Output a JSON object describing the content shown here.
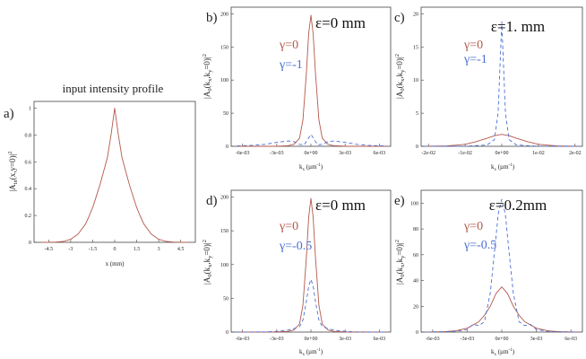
{
  "colors": {
    "red": "#b4584a",
    "blue": "#4a6fd4",
    "axis": "#444444",
    "text": "#222222"
  },
  "chart_data": [
    {
      "id": "a",
      "type": "line",
      "panel_label": "a)",
      "title": "input intensity profile",
      "ylabel": "|A_in(x,y=0)|^2",
      "ylabel_main": "|A",
      "ylabel_sub": "in",
      "ylabel_rest": "(x,y=0)|",
      "ylabel_sup": "2",
      "xlabel": "x (mm)",
      "xlim": [
        -5.5,
        5.5
      ],
      "ylim": [
        0,
        1.05
      ],
      "xticks": [
        -4.5,
        -3,
        -1.5,
        0,
        1.5,
        3,
        4.5
      ],
      "xtick_labels": [
        "-4.5",
        "-3",
        "-1.5",
        "0",
        "1.5",
        "3",
        "4.5"
      ],
      "yticks": [
        0,
        0.2,
        0.4,
        0.6,
        0.8,
        1
      ],
      "ytick_labels": [
        "0",
        "0.2",
        "0.4",
        "0.6",
        "0.8",
        "1"
      ],
      "annotation": "",
      "legend": [],
      "series": [
        {
          "name": "input",
          "color_key": "red",
          "dash": "",
          "x": [
            -5,
            -4.5,
            -4,
            -3.5,
            -3,
            -2.5,
            -2,
            -1.75,
            -1.5,
            -1.25,
            -1,
            -0.75,
            -0.5,
            -0.25,
            0,
            0.25,
            0.5,
            0.75,
            1,
            1.25,
            1.5,
            1.75,
            2,
            2.5,
            3,
            3.5,
            4,
            4.5,
            5
          ],
          "y": [
            0.0001,
            0.0004,
            0.0018,
            0.007,
            0.0228,
            0.061,
            0.135,
            0.194,
            0.26,
            0.343,
            0.43,
            0.53,
            0.63,
            0.8,
            1,
            0.8,
            0.63,
            0.53,
            0.43,
            0.343,
            0.26,
            0.194,
            0.135,
            0.061,
            0.0228,
            0.007,
            0.0018,
            0.0004,
            0.0001
          ]
        }
      ]
    },
    {
      "id": "b",
      "type": "line",
      "panel_label": "b)",
      "title": "",
      "ylabel": "|A_0(k_x,k_y=0)|^2",
      "ylabel_main": "|A",
      "ylabel_sub": "0",
      "ylabel_rest": "(k",
      "ylabel_sub2": "x",
      "ylabel_rest2": ",k",
      "ylabel_sub3": "y",
      "ylabel_rest3": "=0)|",
      "ylabel_sup": "2",
      "xlabel": "k_x (µm^-1)",
      "xlim": [
        -0.007,
        0.007
      ],
      "ylim": [
        0,
        210
      ],
      "xticks": [
        -0.006,
        -0.003,
        0,
        0.003,
        0.006
      ],
      "xtick_labels": [
        "-6e-03",
        "-3e-03",
        "0e+00",
        "3e-03",
        "6e-03"
      ],
      "yticks": [
        0,
        50,
        100,
        150,
        200
      ],
      "ytick_labels": [
        "0",
        "50",
        "100",
        "150",
        "200"
      ],
      "annotation": "ε=0 mm",
      "legend": [
        {
          "label": "γ=0",
          "color_key": "red"
        },
        {
          "label": "γ=-1",
          "color_key": "blue"
        }
      ],
      "series": [
        {
          "name": "γ=0",
          "color_key": "red",
          "dash": "",
          "x": [
            -0.0065,
            -0.005,
            -0.004,
            -0.003,
            -0.002,
            -0.0015,
            -0.001,
            -0.0007,
            -0.0004,
            -0.0002,
            0,
            0.0002,
            0.0004,
            0.0007,
            0.001,
            0.0015,
            0.002,
            0.003,
            0.004,
            0.005,
            0.0065
          ],
          "y": [
            0,
            0,
            0,
            0.2,
            1,
            3,
            12,
            40,
            110,
            170,
            198,
            170,
            110,
            40,
            12,
            3,
            1,
            0.2,
            0,
            0,
            0
          ]
        },
        {
          "name": "γ=-1",
          "color_key": "blue",
          "dash": "4,3",
          "x": [
            -0.0065,
            -0.005,
            -0.004,
            -0.003,
            -0.002,
            -0.0015,
            -0.001,
            -0.0006,
            -0.0003,
            0,
            0.0003,
            0.0006,
            0.001,
            0.0015,
            0.002,
            0.003,
            0.004,
            0.005,
            0.0065
          ],
          "y": [
            0.5,
            1.5,
            3,
            6,
            8,
            7,
            3,
            2,
            10,
            18,
            10,
            2,
            3,
            7,
            8,
            6,
            3,
            1.5,
            0.5
          ]
        }
      ]
    },
    {
      "id": "c",
      "type": "line",
      "panel_label": "c)",
      "title": "",
      "ylabel": "|A_0(k_x,k_y=0)|^2",
      "ylabel_main": "|A",
      "ylabel_sub": "0",
      "ylabel_rest": "(k",
      "ylabel_sub2": "x",
      "ylabel_rest2": ",k",
      "ylabel_sub3": "y",
      "ylabel_rest3": "=0)|",
      "ylabel_sup": "2",
      "xlabel": "k_x (µm^-1)",
      "xlim": [
        -0.022,
        0.022
      ],
      "ylim": [
        0,
        21
      ],
      "xticks": [
        -0.02,
        -0.01,
        0,
        0.01,
        0.02
      ],
      "xtick_labels": [
        "-2e-02",
        "-1e-02",
        "0e+00",
        "1e-02",
        "2e-02"
      ],
      "yticks": [
        0,
        5,
        10,
        15,
        20
      ],
      "ytick_labels": [
        "0",
        "5",
        "10",
        "15",
        "20"
      ],
      "annotation": "ε=1. mm",
      "legend": [
        {
          "label": "γ=0",
          "color_key": "red"
        },
        {
          "label": "γ=-1",
          "color_key": "blue"
        }
      ],
      "series": [
        {
          "name": "γ=0",
          "color_key": "red",
          "dash": "",
          "x": [
            -0.021,
            -0.015,
            -0.01,
            -0.007,
            -0.004,
            -0.002,
            0,
            0.002,
            0.004,
            0.007,
            0.01,
            0.015,
            0.021
          ],
          "y": [
            0,
            0.05,
            0.3,
            0.7,
            1.2,
            1.6,
            1.8,
            1.6,
            1.2,
            0.7,
            0.3,
            0.05,
            0
          ]
        },
        {
          "name": "γ=-1",
          "color_key": "blue",
          "dash": "4,3",
          "x": [
            -0.021,
            -0.01,
            -0.004,
            -0.002,
            -0.001,
            -0.0005,
            0,
            0.0005,
            0.001,
            0.002,
            0.004,
            0.01,
            0.021
          ],
          "y": [
            0,
            0,
            0.2,
            1,
            5,
            12,
            18.8,
            12,
            5,
            1,
            0.2,
            0,
            0
          ]
        }
      ]
    },
    {
      "id": "d",
      "type": "line",
      "panel_label": "d)",
      "title": "",
      "ylabel": "|A_0(k_x,k_y=0)|^2",
      "ylabel_main": "|A",
      "ylabel_sub": "0",
      "ylabel_rest": "(k",
      "ylabel_sub2": "x",
      "ylabel_rest2": ",k",
      "ylabel_sub3": "y",
      "ylabel_rest3": "=0)|",
      "ylabel_sup": "2",
      "xlabel": "k_x (µm^-1)",
      "xlim": [
        -0.007,
        0.007
      ],
      "ylim": [
        0,
        210
      ],
      "xticks": [
        -0.006,
        -0.003,
        0,
        0.003,
        0.006
      ],
      "xtick_labels": [
        "-6e-03",
        "-3e-03",
        "0e+00",
        "3e-03",
        "6e-03"
      ],
      "yticks": [
        0,
        50,
        100,
        150,
        200
      ],
      "ytick_labels": [
        "0",
        "50",
        "100",
        "150",
        "200"
      ],
      "annotation": "ε=0 mm",
      "legend": [
        {
          "label": "γ=0",
          "color_key": "red"
        },
        {
          "label": "γ=-0.5",
          "color_key": "blue"
        }
      ],
      "series": [
        {
          "name": "γ=0",
          "color_key": "red",
          "dash": "",
          "x": [
            -0.0065,
            -0.005,
            -0.004,
            -0.003,
            -0.002,
            -0.0015,
            -0.001,
            -0.0007,
            -0.0004,
            -0.0002,
            0,
            0.0002,
            0.0004,
            0.0007,
            0.001,
            0.0015,
            0.002,
            0.003,
            0.004,
            0.005,
            0.0065
          ],
          "y": [
            0,
            0,
            0,
            0.2,
            1,
            3,
            12,
            40,
            110,
            170,
            198,
            170,
            110,
            40,
            12,
            3,
            1,
            0.2,
            0,
            0,
            0
          ]
        },
        {
          "name": "γ=-0.5",
          "color_key": "blue",
          "dash": "4,3",
          "x": [
            -0.0065,
            -0.004,
            -0.003,
            -0.002,
            -0.0015,
            -0.001,
            -0.0007,
            -0.0004,
            -0.0002,
            0,
            0.0002,
            0.0004,
            0.0007,
            0.001,
            0.0015,
            0.002,
            0.003,
            0.004,
            0.0065
          ],
          "y": [
            0,
            0.3,
            1,
            3,
            5,
            8,
            18,
            45,
            68,
            78,
            68,
            45,
            18,
            8,
            5,
            3,
            1,
            0.3,
            0
          ]
        }
      ]
    },
    {
      "id": "e",
      "type": "line",
      "panel_label": "e)",
      "title": "",
      "ylabel": "|A_0(k_x,k_y=0)|^2",
      "ylabel_main": "|A",
      "ylabel_sub": "0",
      "ylabel_rest": "(k",
      "ylabel_sub2": "x",
      "ylabel_rest2": ",k",
      "ylabel_sub3": "y",
      "ylabel_rest3": "=0)|",
      "ylabel_sup": "2",
      "xlabel": "k_x (µm^-1)",
      "xlim": [
        -0.007,
        0.007
      ],
      "ylim": [
        0,
        110
      ],
      "xticks": [
        -0.006,
        -0.003,
        0,
        0.003,
        0.006
      ],
      "xtick_labels": [
        "-6e-03",
        "-3e-03",
        "0e+00",
        "3e-03",
        "6e-03"
      ],
      "yticks": [
        0,
        20,
        40,
        60,
        80,
        100
      ],
      "ytick_labels": [
        "0",
        "20",
        "40",
        "60",
        "80",
        "100"
      ],
      "annotation": "ε=0.2mm",
      "legend": [
        {
          "label": "γ=0",
          "color_key": "red"
        },
        {
          "label": "γ=-0.5",
          "color_key": "blue"
        }
      ],
      "series": [
        {
          "name": "γ=0",
          "color_key": "red",
          "dash": "",
          "x": [
            -0.0065,
            -0.005,
            -0.004,
            -0.003,
            -0.002,
            -0.0015,
            -0.001,
            -0.0005,
            0,
            0.0005,
            0.001,
            0.0015,
            0.002,
            0.003,
            0.004,
            0.005,
            0.0065
          ],
          "y": [
            0,
            0.3,
            1,
            3,
            8,
            13,
            20,
            30,
            35,
            30,
            20,
            13,
            8,
            3,
            1,
            0.3,
            0
          ]
        },
        {
          "name": "γ=-0.5",
          "color_key": "blue",
          "dash": "4,3",
          "x": [
            -0.0065,
            -0.004,
            -0.003,
            -0.0025,
            -0.002,
            -0.0015,
            -0.001,
            -0.0006,
            -0.0003,
            0,
            0.0003,
            0.0006,
            0.001,
            0.0015,
            0.002,
            0.0025,
            0.003,
            0.004,
            0.0065
          ],
          "y": [
            0,
            0.5,
            2,
            6,
            5,
            8,
            30,
            65,
            92,
            103,
            92,
            65,
            30,
            8,
            5,
            6,
            2,
            0.5,
            0
          ]
        }
      ]
    }
  ]
}
